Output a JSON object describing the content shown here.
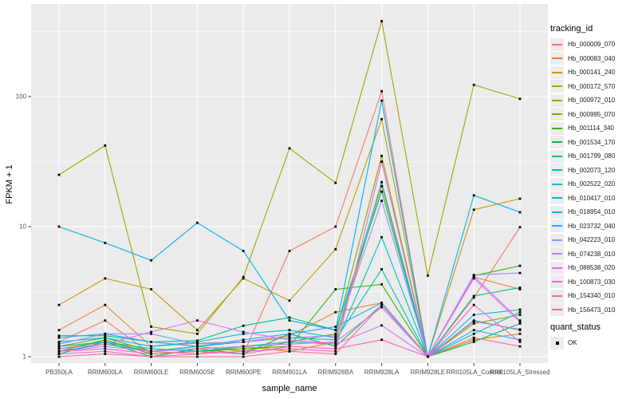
{
  "figure": {
    "legend": {
      "tracking_title": "tracking_id",
      "quant_title": "quant_status",
      "quant_items": [
        {
          "label": "OK",
          "marker": "black-square"
        }
      ]
    }
  },
  "chart_data": {
    "type": "line",
    "title": "",
    "xlabel": "sample_name",
    "ylabel": "FPKM + 1",
    "x_scale": "categorical",
    "y_scale": "log10",
    "y_ticks": [
      1,
      10,
      100
    ],
    "y_minor_ticks": [
      3.162,
      31.62,
      316.2
    ],
    "ylim": [
      0.89,
      500
    ],
    "grid": "on",
    "legend_position": "right",
    "panel_bg": "#EBEBEB",
    "grid_color": "#FFFFFF",
    "tick_label_color": "#4D4D4D",
    "marker": {
      "shape": "square",
      "color": "#000000",
      "size": 2.8,
      "legend_label": "OK"
    },
    "categories": [
      "PB350LA",
      "RRIM600LA",
      "RRIM600LE",
      "RRIM600SE",
      "RRIM600PE",
      "RRIM901LA",
      "RRIM928BA",
      "RRIM928LA",
      "RRIM928LE",
      "RRII105LA_Control",
      "RRII105LA_Stressed"
    ],
    "series": [
      {
        "name": "Hb_000009_070",
        "color": "#F8766D",
        "values": [
          1.3,
          1.9,
          1.05,
          1.1,
          1.05,
          6.5,
          10,
          110,
          1,
          2.85,
          9.9
        ]
      },
      {
        "name": "Hb_000083_040",
        "color": "#EA8331",
        "values": [
          1.6,
          2.5,
          1.2,
          1.27,
          1.3,
          1.45,
          2.2,
          2.6,
          1,
          4.1,
          3.3
        ]
      },
      {
        "name": "Hb_000141_240",
        "color": "#D89000",
        "values": [
          1.15,
          1.3,
          1.1,
          1.05,
          1.2,
          1.1,
          1.3,
          20.5,
          1,
          1.35,
          1.5
        ]
      },
      {
        "name": "Hb_000172_570",
        "color": "#C09B00",
        "values": [
          2.5,
          4.0,
          3.3,
          1.6,
          4.0,
          2.7,
          6.7,
          67,
          1,
          13.5,
          16.4
        ]
      },
      {
        "name": "Hb_000972_010",
        "color": "#A3A500",
        "values": [
          25,
          42,
          1.7,
          1.5,
          4.1,
          40,
          21.7,
          380,
          4.2,
          123,
          96
        ]
      },
      {
        "name": "Hb_000995_070",
        "color": "#7CAE00",
        "values": [
          1.2,
          1.4,
          1.1,
          1.2,
          1.1,
          1.3,
          1.5,
          35,
          1,
          1.8,
          2.1
        ]
      },
      {
        "name": "Hb_001114_340",
        "color": "#39B600",
        "values": [
          1.1,
          1.35,
          1.05,
          1.1,
          1.15,
          1.2,
          3.3,
          3.6,
          1,
          4.2,
          5.0
        ]
      },
      {
        "name": "Hb_001534_170",
        "color": "#00BB4E",
        "values": [
          1.05,
          1.3,
          1.0,
          1.15,
          1.05,
          1.5,
          1.2,
          2.5,
          1,
          1.3,
          1.8
        ]
      },
      {
        "name": "Hb_001799_080",
        "color": "#00C087",
        "values": [
          1.45,
          1.45,
          1.3,
          1.33,
          1.73,
          2.0,
          1.6,
          18.6,
          1,
          2.93,
          3.4
        ]
      },
      {
        "name": "Hb_002073_120",
        "color": "#00C0B8",
        "values": [
          1.1,
          1.25,
          1.1,
          1.2,
          1.3,
          1.4,
          1.35,
          4.7,
          1,
          1.5,
          2.2
        ]
      },
      {
        "name": "Hb_002522_020",
        "color": "#00BFC4",
        "values": [
          1.2,
          1.3,
          1.15,
          1.1,
          1.2,
          1.3,
          1.25,
          8.3,
          1,
          1.9,
          1.6
        ]
      },
      {
        "name": "Hb_010417_010",
        "color": "#00BAE0",
        "values": [
          1.3,
          1.4,
          1.2,
          1.3,
          1.5,
          1.6,
          1.4,
          22,
          1,
          2.1,
          2.3
        ]
      },
      {
        "name": "Hb_018954_010",
        "color": "#00B0F6",
        "values": [
          10,
          7.5,
          5.5,
          10.7,
          6.5,
          1.9,
          1.6,
          93,
          1,
          17.4,
          12.9
        ]
      },
      {
        "name": "Hb_023732_040",
        "color": "#35A2FF",
        "values": [
          1.4,
          1.5,
          1.3,
          1.2,
          1.35,
          1.5,
          1.7,
          2.6,
          1,
          1.6,
          1.35
        ]
      },
      {
        "name": "Hb_042223_010",
        "color": "#9590FF",
        "values": [
          1.25,
          1.5,
          1.5,
          1.25,
          1.3,
          1.4,
          1.45,
          15.8,
          1,
          4.25,
          4.4
        ]
      },
      {
        "name": "Hb_074238_010",
        "color": "#C77CFF",
        "values": [
          1.1,
          1.2,
          1.1,
          1.15,
          1.2,
          1.25,
          1.3,
          2.4,
          1,
          4.15,
          1.9
        ]
      },
      {
        "name": "Hb_088538_020",
        "color": "#E76BF3",
        "values": [
          1.15,
          1.25,
          1.55,
          1.9,
          1.55,
          1.35,
          1.25,
          1.74,
          1,
          4.0,
          1.85
        ]
      },
      {
        "name": "Hb_100873_030",
        "color": "#FA62DB",
        "values": [
          1.05,
          1.1,
          1.0,
          1.05,
          1.1,
          1.15,
          1.1,
          31.6,
          1,
          2.5,
          1.3
        ]
      },
      {
        "name": "Hb_154340_010",
        "color": "#FF62BC",
        "values": [
          1.1,
          1.15,
          1.05,
          1.1,
          1.05,
          1.2,
          1.15,
          1.35,
          1,
          1.87,
          1.62
        ]
      },
      {
        "name": "Hb_156473_010",
        "color": "#FF6A98",
        "values": [
          1.0,
          1.05,
          1.0,
          1.0,
          1.0,
          1.1,
          1.05,
          2.5,
          1,
          1.4,
          1.2
        ]
      }
    ]
  }
}
